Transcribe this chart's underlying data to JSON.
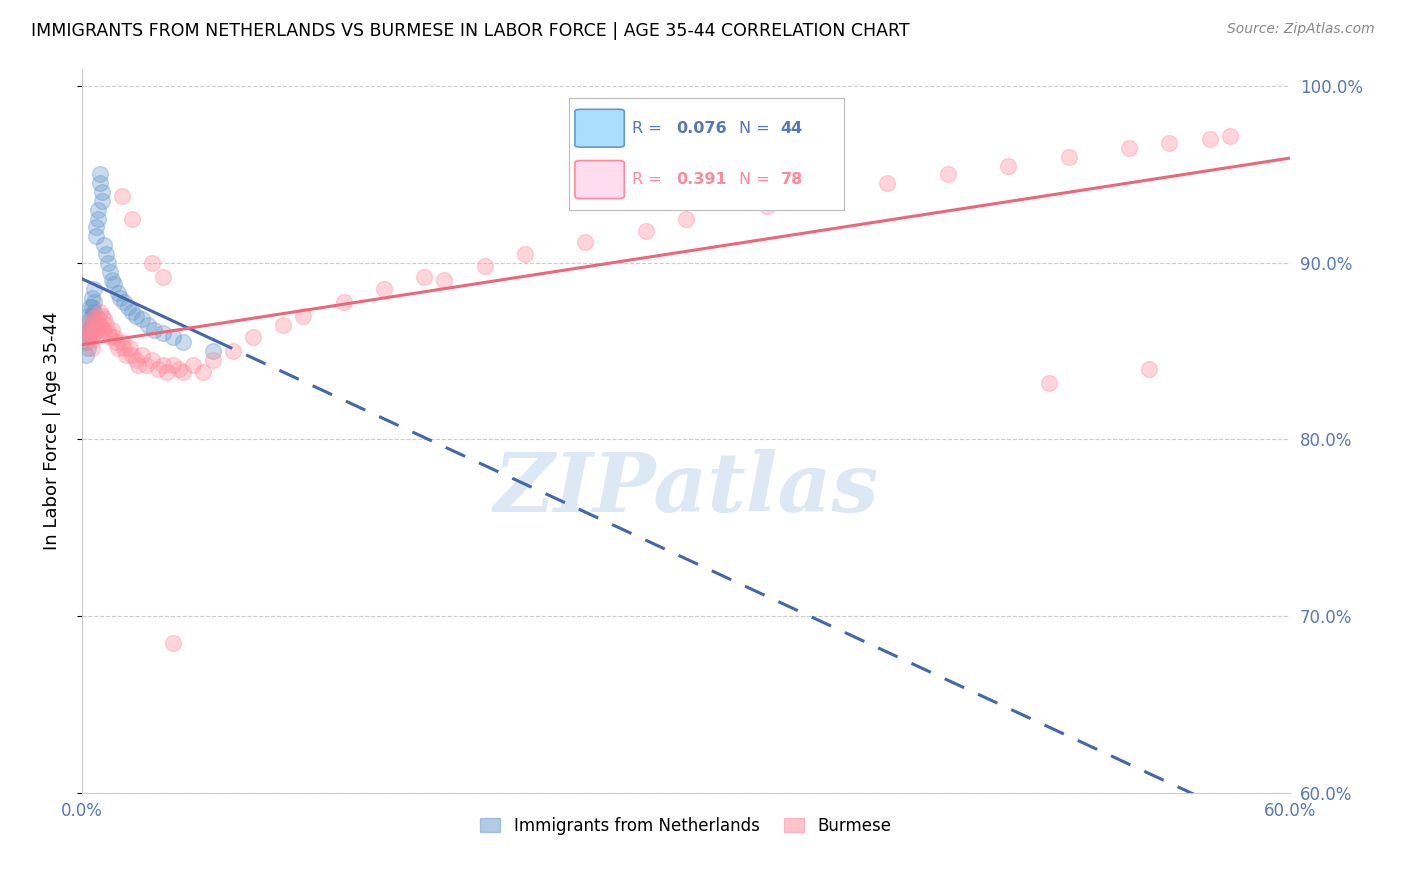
{
  "title": "IMMIGRANTS FROM NETHERLANDS VS BURMESE IN LABOR FORCE | AGE 35-44 CORRELATION CHART",
  "source": "Source: ZipAtlas.com",
  "ylabel": "In Labor Force | Age 35-44",
  "xmin": 0.0,
  "xmax": 0.6,
  "ymin": 0.6,
  "ymax": 1.01,
  "yticks": [
    1.0,
    0.9,
    0.8,
    0.7,
    0.6
  ],
  "ytick_labels": [
    "100.0%",
    "90.0%",
    "80.0%",
    "70.0%",
    "60.0%"
  ],
  "xticks": [
    0.0,
    0.1,
    0.2,
    0.3,
    0.4,
    0.5,
    0.6
  ],
  "xtick_labels": [
    "0.0%",
    "",
    "",
    "",
    "",
    "",
    "60.0%"
  ],
  "blue_color": "#6699CC",
  "pink_color": "#FF8899",
  "axis_color": "#5577BB",
  "grid_color": "#cccccc",
  "blue_line_color": "#4466AA",
  "pink_line_color": "#EE6677",
  "blue_scatter_x": [
    0.002,
    0.002,
    0.002,
    0.003,
    0.003,
    0.003,
    0.003,
    0.004,
    0.004,
    0.004,
    0.005,
    0.005,
    0.005,
    0.005,
    0.006,
    0.006,
    0.006,
    0.007,
    0.007,
    0.008,
    0.008,
    0.009,
    0.009,
    0.01,
    0.01,
    0.011,
    0.012,
    0.013,
    0.014,
    0.015,
    0.016,
    0.018,
    0.019,
    0.021,
    0.023,
    0.025,
    0.027,
    0.03,
    0.033,
    0.036,
    0.04,
    0.045,
    0.05,
    0.065
  ],
  "blue_scatter_y": [
    0.86,
    0.855,
    0.848,
    0.87,
    0.862,
    0.858,
    0.852,
    0.875,
    0.868,
    0.862,
    0.88,
    0.875,
    0.87,
    0.865,
    0.885,
    0.878,
    0.872,
    0.92,
    0.915,
    0.93,
    0.925,
    0.95,
    0.945,
    0.94,
    0.935,
    0.91,
    0.905,
    0.9,
    0.895,
    0.89,
    0.888,
    0.883,
    0.88,
    0.878,
    0.875,
    0.872,
    0.87,
    0.868,
    0.865,
    0.862,
    0.86,
    0.858,
    0.855,
    0.85
  ],
  "pink_scatter_x": [
    0.003,
    0.003,
    0.004,
    0.004,
    0.004,
    0.005,
    0.005,
    0.005,
    0.005,
    0.006,
    0.006,
    0.007,
    0.007,
    0.008,
    0.008,
    0.009,
    0.009,
    0.01,
    0.01,
    0.011,
    0.011,
    0.012,
    0.013,
    0.014,
    0.015,
    0.016,
    0.017,
    0.018,
    0.02,
    0.021,
    0.022,
    0.024,
    0.025,
    0.027,
    0.028,
    0.03,
    0.032,
    0.035,
    0.038,
    0.04,
    0.042,
    0.045,
    0.048,
    0.05,
    0.055,
    0.06,
    0.065,
    0.075,
    0.085,
    0.1,
    0.11,
    0.13,
    0.15,
    0.17,
    0.2,
    0.22,
    0.25,
    0.28,
    0.3,
    0.34,
    0.37,
    0.4,
    0.43,
    0.46,
    0.49,
    0.52,
    0.54,
    0.56,
    0.57,
    0.02,
    0.025,
    0.035,
    0.04,
    0.18,
    0.35,
    0.48,
    0.53,
    0.045
  ],
  "pink_scatter_y": [
    0.862,
    0.858,
    0.865,
    0.86,
    0.855,
    0.868,
    0.862,
    0.858,
    0.852,
    0.865,
    0.86,
    0.87,
    0.862,
    0.868,
    0.862,
    0.872,
    0.865,
    0.87,
    0.862,
    0.868,
    0.862,
    0.865,
    0.86,
    0.858,
    0.862,
    0.858,
    0.855,
    0.852,
    0.855,
    0.852,
    0.848,
    0.852,
    0.848,
    0.845,
    0.842,
    0.848,
    0.842,
    0.845,
    0.84,
    0.842,
    0.838,
    0.842,
    0.84,
    0.838,
    0.842,
    0.838,
    0.845,
    0.85,
    0.858,
    0.865,
    0.87,
    0.878,
    0.885,
    0.892,
    0.898,
    0.905,
    0.912,
    0.918,
    0.925,
    0.932,
    0.94,
    0.945,
    0.95,
    0.955,
    0.96,
    0.965,
    0.968,
    0.97,
    0.972,
    0.938,
    0.925,
    0.9,
    0.892,
    0.89,
    0.948,
    0.832,
    0.84,
    0.685
  ],
  "blue_R": 0.076,
  "blue_N": 44,
  "pink_R": 0.391,
  "pink_N": 78,
  "watermark_text": "ZIPatlas",
  "watermark_color": "#dde8f5",
  "legend_box_color": "#aaaaaa",
  "legend_blue_fill": "#aaddff",
  "legend_pink_fill": "#ffddee"
}
